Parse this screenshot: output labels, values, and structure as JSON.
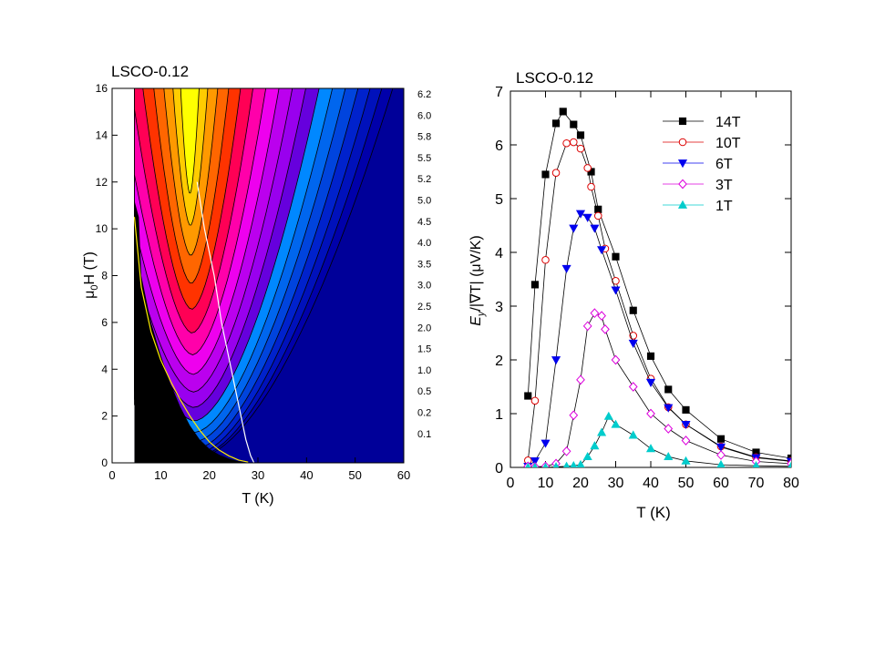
{
  "chart_data": [
    {
      "type": "heatmap",
      "title": "LSCO-0.12",
      "xlabel": "T (K)",
      "ylabel_main": "μ",
      "ylabel_sub": "0",
      "ylabel_rest": "H (T)",
      "xlim": [
        0,
        60
      ],
      "ylim": [
        0,
        16
      ],
      "xticks": [
        "0",
        "10",
        "20",
        "30",
        "40",
        "50",
        "60"
      ],
      "yticks": [
        "0",
        "2",
        "4",
        "6",
        "8",
        "10",
        "12",
        "14",
        "16"
      ],
      "colorbar_levels": [
        "6.2",
        "6.0",
        "5.8",
        "5.5",
        "5.2",
        "5.0",
        "4.5",
        "4.0",
        "3.5",
        "3.0",
        "2.5",
        "2.0",
        "1.5",
        "1.0",
        "0.5",
        "0.2",
        "0.1"
      ],
      "colormap": [
        "#ffff00",
        "#ffcc00",
        "#ff9900",
        "#ff6600",
        "#ff3300",
        "#ff0055",
        "#ff00aa",
        "#ee00ee",
        "#bb00ee",
        "#9900ee",
        "#6600dd",
        "#0088ff",
        "#0066ee",
        "#0044dd",
        "#0022cc",
        "#0011bb",
        "#0000aa",
        "#000099"
      ],
      "melting_line_yellow": [
        [
          4.6,
          10.5
        ],
        [
          6,
          7.5
        ],
        [
          8,
          5.6
        ],
        [
          10,
          4.4
        ],
        [
          12,
          3.5
        ],
        [
          14,
          2.7
        ],
        [
          16,
          2.0
        ],
        [
          18,
          1.4
        ],
        [
          20,
          0.9
        ],
        [
          22,
          0.55
        ],
        [
          24,
          0.3
        ],
        [
          26,
          0.12
        ],
        [
          28,
          0.03
        ]
      ],
      "peak_line_white": [
        [
          17.5,
          12.0
        ],
        [
          19,
          10.0
        ],
        [
          21,
          8.0
        ],
        [
          22.5,
          6.0
        ],
        [
          24.5,
          4.0
        ],
        [
          26,
          2.5
        ],
        [
          27.5,
          1.0
        ],
        [
          28.5,
          0.3
        ],
        [
          29.2,
          0.0
        ]
      ],
      "minimum_field_line": {
        "Tmin": 16,
        "H0": 4.5,
        "a": 0.0305
      },
      "black_region_edge": [
        [
          4.6,
          11.2
        ],
        [
          5.5,
          10.5
        ],
        [
          6,
          8.0
        ],
        [
          8,
          6.0
        ],
        [
          10,
          4.6
        ],
        [
          12,
          3.4
        ],
        [
          14,
          2.4
        ],
        [
          16,
          1.6
        ],
        [
          18,
          1.0
        ],
        [
          20,
          0.6
        ],
        [
          22,
          0.35
        ],
        [
          24,
          0.18
        ],
        [
          26,
          0.07
        ],
        [
          28,
          0.0
        ]
      ]
    },
    {
      "type": "line",
      "title": "LSCO-0.12",
      "xlabel": "T (K)",
      "ylabel_main": "E",
      "ylabel_sub": "y",
      "ylabel_rest": "/|∇T| (μV/K)",
      "xlim": [
        0,
        80
      ],
      "ylim": [
        0,
        7
      ],
      "xticks": [
        "0",
        "10",
        "20",
        "30",
        "40",
        "50",
        "60",
        "70",
        "80"
      ],
      "yticks": [
        "0",
        "1",
        "2",
        "3",
        "4",
        "5",
        "6",
        "7"
      ],
      "legend_position": "top-right",
      "series": [
        {
          "name": "14T",
          "color": "#000000",
          "marker": "square",
          "filled": true,
          "x": [
            5,
            7,
            10,
            13,
            15,
            18,
            20,
            23,
            25,
            30,
            35,
            40,
            45,
            50,
            60,
            70,
            80
          ],
          "y": [
            1.33,
            3.4,
            5.45,
            6.4,
            6.62,
            6.38,
            6.18,
            5.5,
            4.8,
            3.92,
            2.92,
            2.07,
            1.45,
            1.07,
            0.53,
            0.28,
            0.17
          ]
        },
        {
          "name": "10T",
          "color": "#dd0000",
          "marker": "circle",
          "filled": false,
          "x": [
            5,
            7,
            10,
            13,
            16,
            18,
            20,
            22,
            23,
            25,
            27,
            30,
            35,
            40,
            45,
            50,
            60,
            70,
            80
          ],
          "y": [
            0.13,
            1.24,
            3.86,
            5.48,
            6.03,
            6.05,
            5.93,
            5.57,
            5.22,
            4.68,
            4.07,
            3.47,
            2.45,
            1.65,
            1.12,
            0.8,
            0.39,
            0.19,
            0.12
          ]
        },
        {
          "name": "6T",
          "color": "#0000ee",
          "marker": "triangle-down",
          "filled": true,
          "x": [
            5,
            7,
            10,
            13,
            16,
            18,
            20,
            22,
            24,
            26,
            30,
            35,
            40,
            45,
            50,
            60,
            70,
            80
          ],
          "y": [
            0.02,
            0.12,
            0.45,
            2.0,
            3.7,
            4.45,
            4.72,
            4.65,
            4.45,
            4.05,
            3.3,
            2.31,
            1.58,
            1.11,
            0.8,
            0.38,
            0.18,
            0.11
          ]
        },
        {
          "name": "3T",
          "color": "#dd00dd",
          "marker": "diamond",
          "filled": false,
          "x": [
            5,
            7,
            10,
            13,
            16,
            18,
            20,
            22,
            24,
            26,
            27,
            30,
            35,
            40,
            45,
            50,
            60,
            70,
            80
          ],
          "y": [
            0.02,
            0.01,
            0.02,
            0.07,
            0.3,
            0.97,
            1.63,
            2.63,
            2.87,
            2.82,
            2.57,
            2.0,
            1.5,
            1.0,
            0.72,
            0.5,
            0.23,
            0.11,
            0.07
          ]
        },
        {
          "name": "1T",
          "color": "#00cccc",
          "marker": "triangle-up",
          "filled": true,
          "x": [
            5,
            7,
            10,
            13,
            16,
            18,
            20,
            22,
            24,
            26,
            28,
            30,
            35,
            40,
            45,
            50,
            60,
            70,
            80
          ],
          "y": [
            0.0,
            0.0,
            0.0,
            0.01,
            0.02,
            0.03,
            0.05,
            0.2,
            0.4,
            0.65,
            0.95,
            0.8,
            0.6,
            0.35,
            0.2,
            0.12,
            0.05,
            0.03,
            0.02
          ]
        }
      ]
    }
  ]
}
